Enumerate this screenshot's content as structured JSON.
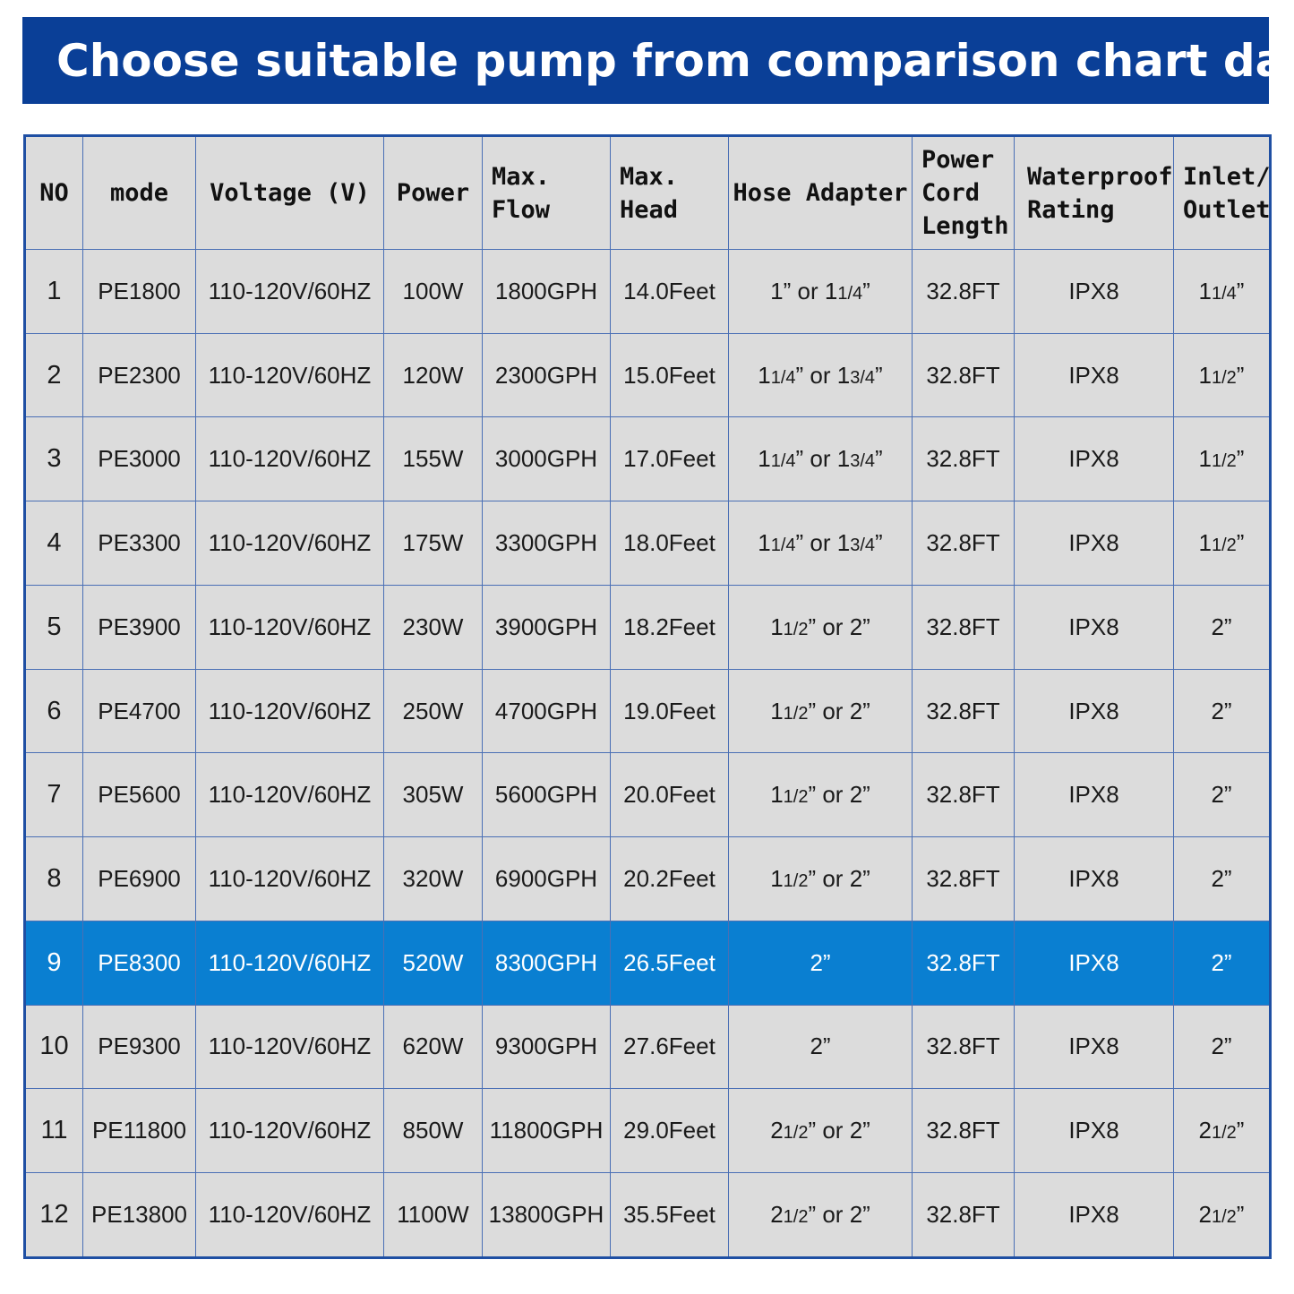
{
  "title": "Choose suitable pump from comparison chart data",
  "chart_data": {
    "type": "table",
    "columns": [
      "NO",
      "mode",
      "Voltage (V)",
      "Power",
      "Max. Flow",
      "Max. Head",
      "Hose Adapter",
      "Power Cord Length",
      "Waterproof Rating",
      "Inlet/ Outlet"
    ],
    "highlighted_row": 9,
    "highlight_color": "#0a7fd1",
    "header_color": "#0a3f97",
    "rows": [
      {
        "no": "1",
        "mode": "PE1800",
        "voltage": "110-120V/60HZ",
        "power": "100W",
        "flow": "1800GPH",
        "head": "14.0Feet",
        "hose": "1” or 11/4”",
        "cord": "32.8FT",
        "rating": "IPX8",
        "inlet": "11/4”"
      },
      {
        "no": "2",
        "mode": "PE2300",
        "voltage": "110-120V/60HZ",
        "power": "120W",
        "flow": "2300GPH",
        "head": "15.0Feet",
        "hose": "11/4” or 13/4”",
        "cord": "32.8FT",
        "rating": "IPX8",
        "inlet": "11/2”"
      },
      {
        "no": "3",
        "mode": "PE3000",
        "voltage": "110-120V/60HZ",
        "power": "155W",
        "flow": "3000GPH",
        "head": "17.0Feet",
        "hose": "11/4” or 13/4”",
        "cord": "32.8FT",
        "rating": "IPX8",
        "inlet": "11/2”"
      },
      {
        "no": "4",
        "mode": "PE3300",
        "voltage": "110-120V/60HZ",
        "power": "175W",
        "flow": "3300GPH",
        "head": "18.0Feet",
        "hose": "11/4” or 13/4”",
        "cord": "32.8FT",
        "rating": "IPX8",
        "inlet": "11/2”"
      },
      {
        "no": "5",
        "mode": "PE3900",
        "voltage": "110-120V/60HZ",
        "power": "230W",
        "flow": "3900GPH",
        "head": "18.2Feet",
        "hose": "11/2” or 2”",
        "cord": "32.8FT",
        "rating": "IPX8",
        "inlet": "2”"
      },
      {
        "no": "6",
        "mode": "PE4700",
        "voltage": "110-120V/60HZ",
        "power": "250W",
        "flow": "4700GPH",
        "head": "19.0Feet",
        "hose": "11/2” or 2”",
        "cord": "32.8FT",
        "rating": "IPX8",
        "inlet": "2”"
      },
      {
        "no": "7",
        "mode": "PE5600",
        "voltage": "110-120V/60HZ",
        "power": "305W",
        "flow": "5600GPH",
        "head": "20.0Feet",
        "hose": "11/2” or 2”",
        "cord": "32.8FT",
        "rating": "IPX8",
        "inlet": "2”"
      },
      {
        "no": "8",
        "mode": "PE6900",
        "voltage": "110-120V/60HZ",
        "power": "320W",
        "flow": "6900GPH",
        "head": "20.2Feet",
        "hose": "11/2” or 2”",
        "cord": "32.8FT",
        "rating": "IPX8",
        "inlet": "2”"
      },
      {
        "no": "9",
        "mode": "PE8300",
        "voltage": "110-120V/60HZ",
        "power": "520W",
        "flow": "8300GPH",
        "head": "26.5Feet",
        "hose": "2”",
        "cord": "32.8FT",
        "rating": "IPX8",
        "inlet": "2”"
      },
      {
        "no": "10",
        "mode": "PE9300",
        "voltage": "110-120V/60HZ",
        "power": "620W",
        "flow": "9300GPH",
        "head": "27.6Feet",
        "hose": "2”",
        "cord": "32.8FT",
        "rating": "IPX8",
        "inlet": "2”"
      },
      {
        "no": "11",
        "mode": "PE11800",
        "voltage": "110-120V/60HZ",
        "power": "850W",
        "flow": "11800GPH",
        "head": "29.0Feet",
        "hose": "21/2” or 2”",
        "cord": "32.8FT",
        "rating": "IPX8",
        "inlet": "21/2”"
      },
      {
        "no": "12",
        "mode": "PE13800",
        "voltage": "110-120V/60HZ",
        "power": "1100W",
        "flow": "13800GPH",
        "head": "35.5Feet",
        "hose": "21/2” or 2”",
        "cord": "32.8FT",
        "rating": "IPX8",
        "inlet": "21/2”"
      }
    ]
  }
}
